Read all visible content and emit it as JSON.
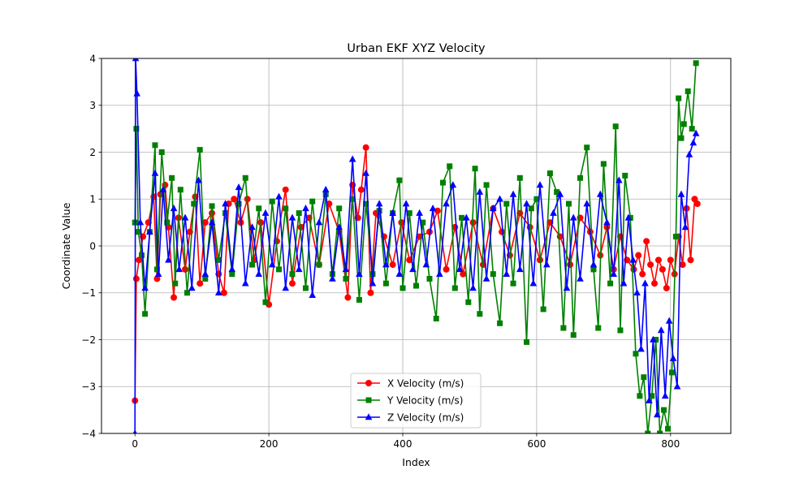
{
  "chart_data": {
    "type": "line",
    "title": "Urban EKF XYZ Velocity",
    "xlabel": "Index",
    "ylabel": "Coordinate Value",
    "xlim": [
      -50,
      890
    ],
    "ylim": [
      -4,
      4
    ],
    "x_ticks": [
      0,
      200,
      400,
      600,
      800
    ],
    "x_tick_labels": [
      "0",
      "200",
      "400",
      "600",
      "800"
    ],
    "y_ticks": [
      -4,
      -3,
      -2,
      -1,
      0,
      1,
      2,
      3,
      4
    ],
    "y_tick_labels": [
      "−4",
      "−3",
      "−2",
      "−1",
      "0",
      "1",
      "2",
      "3",
      "4"
    ],
    "grid": true,
    "legend_position": "lower-center",
    "series": [
      {
        "name": "X Velocity (m/s)",
        "color": "#ff0000",
        "marker": "circle",
        "x": [
          0,
          2,
          6,
          12,
          20,
          28,
          33,
          38,
          45,
          50,
          58,
          65,
          75,
          82,
          90,
          97,
          105,
          115,
          125,
          133,
          140,
          148,
          158,
          168,
          178,
          188,
          200,
          212,
          225,
          235,
          248,
          260,
          275,
          290,
          305,
          318,
          325,
          333,
          338,
          345,
          352,
          360,
          372,
          385,
          398,
          410,
          425,
          440,
          452,
          465,
          478,
          490,
          505,
          520,
          535,
          548,
          560,
          575,
          590,
          605,
          620,
          635,
          650,
          665,
          680,
          695,
          705,
          715,
          725,
          735,
          745,
          752,
          758,
          764,
          770,
          776,
          782,
          788,
          794,
          800,
          806,
          812,
          818,
          824,
          830,
          836,
          840
        ],
        "y": [
          -3.3,
          -0.7,
          -0.3,
          0.2,
          0.5,
          1.05,
          -0.7,
          1.1,
          1.3,
          0.4,
          -1.1,
          0.6,
          -0.5,
          0.3,
          1.05,
          -0.8,
          0.5,
          0.7,
          -0.6,
          -1.0,
          0.9,
          1.0,
          0.5,
          1.0,
          -0.3,
          0.5,
          -1.25,
          0.1,
          1.2,
          -0.8,
          0.4,
          0.6,
          -0.4,
          0.9,
          0.3,
          -1.1,
          1.3,
          0.6,
          1.2,
          2.1,
          -1.0,
          0.7,
          0.2,
          -0.4,
          0.5,
          -0.3,
          0.2,
          0.3,
          0.75,
          -0.5,
          0.4,
          -0.6,
          0.5,
          -0.4,
          0.8,
          0.3,
          -0.2,
          0.7,
          0.4,
          -0.3,
          0.5,
          0.2,
          -0.4,
          0.6,
          0.3,
          -0.2,
          0.4,
          -0.5,
          0.2,
          -0.3,
          -0.5,
          -0.2,
          -0.6,
          0.1,
          -0.4,
          -0.8,
          -0.3,
          -0.5,
          -0.9,
          -0.3,
          -0.6,
          0.2,
          -0.4,
          0.8,
          -0.3,
          1.0,
          0.9
        ]
      },
      {
        "name": "Y Velocity (m/s)",
        "color": "#008000",
        "marker": "square",
        "x": [
          0,
          2,
          5,
          10,
          15,
          22,
          30,
          33,
          40,
          48,
          55,
          60,
          68,
          78,
          88,
          97,
          105,
          115,
          125,
          135,
          145,
          155,
          165,
          175,
          185,
          195,
          205,
          215,
          225,
          235,
          245,
          255,
          265,
          275,
          285,
          295,
          305,
          315,
          325,
          335,
          345,
          355,
          365,
          375,
          385,
          395,
          400,
          410,
          420,
          430,
          440,
          450,
          460,
          470,
          478,
          488,
          498,
          508,
          515,
          525,
          535,
          545,
          555,
          565,
          575,
          585,
          592,
          600,
          610,
          620,
          630,
          640,
          648,
          655,
          665,
          675,
          685,
          692,
          700,
          710,
          718,
          725,
          732,
          740,
          748,
          754,
          760,
          766,
          772,
          778,
          784,
          790,
          796,
          802,
          808,
          812,
          816,
          820,
          826,
          832,
          838
        ],
        "y": [
          0.5,
          2.5,
          0.3,
          -0.2,
          -1.45,
          0.3,
          2.15,
          -0.5,
          2.0,
          0.5,
          1.45,
          -0.8,
          1.2,
          -1.0,
          0.9,
          2.05,
          -0.7,
          0.85,
          -0.3,
          0.7,
          -0.6,
          0.9,
          1.45,
          -0.4,
          0.8,
          -1.2,
          0.95,
          -0.5,
          0.8,
          -0.6,
          0.7,
          -0.9,
          0.95,
          -0.4,
          1.1,
          -0.6,
          0.8,
          -0.7,
          1.0,
          -1.15,
          0.9,
          -0.6,
          0.75,
          -0.8,
          0.7,
          1.4,
          -0.9,
          0.7,
          -0.85,
          0.5,
          -0.7,
          -1.55,
          1.35,
          1.7,
          -0.9,
          0.6,
          -1.2,
          1.65,
          -1.45,
          1.3,
          -0.6,
          -1.65,
          0.9,
          -0.8,
          1.45,
          -2.05,
          0.8,
          1.0,
          -1.35,
          1.55,
          1.15,
          -1.75,
          0.9,
          -1.9,
          1.45,
          2.1,
          -0.5,
          -1.75,
          1.75,
          -0.8,
          2.55,
          -1.8,
          1.5,
          0.6,
          -2.3,
          -3.2,
          -2.8,
          -4.0,
          -3.2,
          -2.0,
          -4.0,
          -3.5,
          -3.9,
          -2.7,
          0.2,
          3.15,
          2.3,
          2.6,
          3.3,
          2.5,
          3.9
        ]
      },
      {
        "name": "Z Velocity (m/s)",
        "color": "#0000ff",
        "marker": "triangle",
        "x": [
          0,
          1,
          3,
          8,
          15,
          22,
          30,
          35,
          42,
          50,
          58,
          66,
          75,
          85,
          95,
          105,
          115,
          125,
          135,
          145,
          155,
          165,
          175,
          185,
          195,
          205,
          215,
          225,
          235,
          245,
          255,
          265,
          275,
          285,
          295,
          305,
          315,
          325,
          335,
          345,
          355,
          365,
          375,
          385,
          395,
          405,
          415,
          425,
          435,
          445,
          455,
          465,
          475,
          485,
          495,
          505,
          515,
          525,
          535,
          545,
          555,
          565,
          575,
          585,
          595,
          605,
          615,
          625,
          635,
          645,
          655,
          665,
          675,
          685,
          695,
          705,
          715,
          723,
          730,
          737,
          744,
          750,
          756,
          762,
          768,
          774,
          780,
          786,
          792,
          798,
          804,
          810,
          816,
          822,
          828,
          834,
          838
        ],
        "y": [
          -4.0,
          4.0,
          3.25,
          0.5,
          -0.9,
          0.3,
          1.55,
          -0.6,
          1.2,
          -0.3,
          0.8,
          -0.5,
          0.6,
          -0.9,
          1.4,
          -0.6,
          0.5,
          -1.0,
          0.9,
          -0.5,
          1.25,
          -0.8,
          0.4,
          -0.6,
          0.7,
          -0.4,
          1.05,
          -0.9,
          0.6,
          -0.5,
          0.8,
          -1.05,
          0.5,
          1.2,
          -0.7,
          0.4,
          -0.5,
          1.85,
          -0.6,
          1.55,
          -0.8,
          0.9,
          -0.4,
          0.7,
          -0.6,
          0.9,
          -0.5,
          0.7,
          -0.4,
          0.8,
          -0.6,
          0.9,
          1.3,
          -0.5,
          0.6,
          -0.9,
          1.15,
          -0.7,
          0.8,
          1.0,
          -0.6,
          1.1,
          -0.5,
          0.9,
          -0.8,
          1.3,
          -0.4,
          0.7,
          1.1,
          -0.9,
          0.6,
          -0.7,
          0.9,
          -0.4,
          1.1,
          0.5,
          -0.6,
          1.4,
          -0.8,
          0.6,
          -0.3,
          -1.0,
          -2.2,
          -0.8,
          -3.3,
          -2.0,
          -3.6,
          -1.8,
          -3.2,
          -1.6,
          -2.4,
          -3.0,
          1.1,
          0.4,
          1.95,
          2.2,
          2.4
        ]
      }
    ]
  }
}
